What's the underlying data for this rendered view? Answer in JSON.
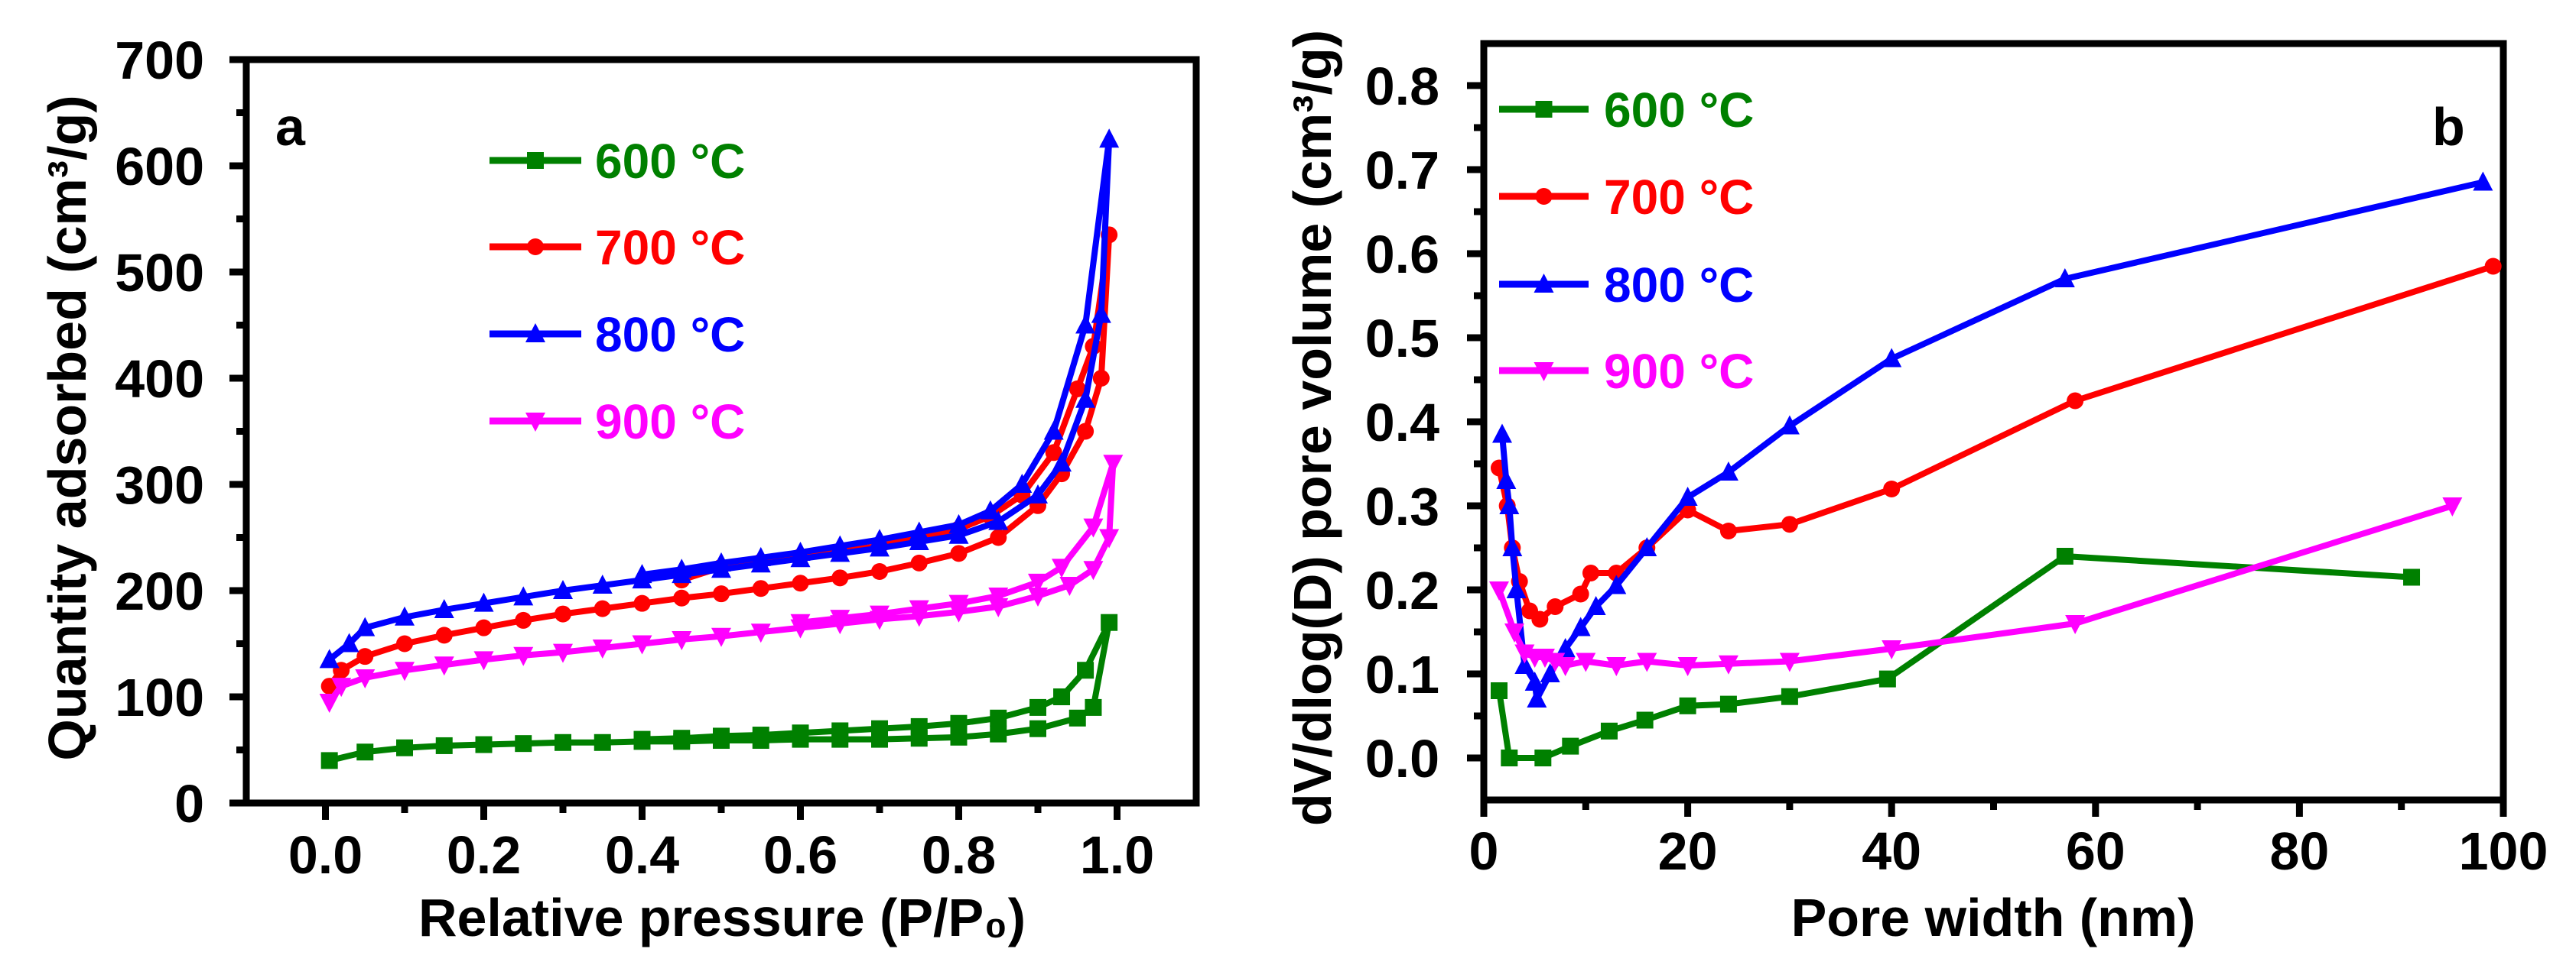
{
  "chart_data": [
    {
      "type": "line",
      "panel_label": "a",
      "xlabel": "Relative pressure (P/P₀)",
      "ylabel": "Quantity adsorbed (cm³/g)",
      "xlim": [
        -0.1,
        1.1
      ],
      "ylim": [
        0,
        700
      ],
      "xticks": [
        0.0,
        0.2,
        0.4,
        0.6,
        0.8,
        1.0
      ],
      "xtick_labels": [
        "0.0",
        "0.2",
        "0.4",
        "0.6",
        "0.8",
        "1.0"
      ],
      "yticks": [
        0,
        100,
        200,
        300,
        400,
        500,
        600,
        700
      ],
      "ytick_labels": [
        "0",
        "100",
        "200",
        "300",
        "400",
        "500",
        "600",
        "700"
      ],
      "legend_position": "top-left",
      "series": [
        {
          "name": "600 °C",
          "color": "#008000",
          "marker": "square",
          "x": [
            0.005,
            0.05,
            0.1,
            0.15,
            0.2,
            0.25,
            0.3,
            0.35,
            0.4,
            0.45,
            0.5,
            0.55,
            0.6,
            0.65,
            0.7,
            0.75,
            0.8,
            0.85,
            0.9,
            0.95,
            0.97,
            0.99,
            0.96,
            0.93,
            0.9,
            0.85,
            0.8,
            0.75,
            0.7,
            0.65,
            0.6,
            0.55,
            0.5,
            0.45,
            0.4
          ],
          "y": [
            40,
            48,
            52,
            54,
            55,
            56,
            57,
            57,
            58,
            58,
            59,
            59,
            60,
            60,
            60,
            61,
            62,
            65,
            70,
            80,
            90,
            170,
            125,
            100,
            90,
            80,
            75,
            72,
            70,
            68,
            66,
            64,
            63,
            61,
            60
          ]
        },
        {
          "name": "700 °C",
          "color": "#ff0000",
          "marker": "circle",
          "x": [
            0.005,
            0.02,
            0.05,
            0.1,
            0.15,
            0.2,
            0.25,
            0.3,
            0.35,
            0.4,
            0.45,
            0.5,
            0.55,
            0.6,
            0.65,
            0.7,
            0.75,
            0.8,
            0.85,
            0.9,
            0.93,
            0.96,
            0.98,
            0.99,
            0.97,
            0.95,
            0.92,
            0.88,
            0.84,
            0.8,
            0.75,
            0.7,
            0.65,
            0.6,
            0.55,
            0.5,
            0.45
          ],
          "y": [
            110,
            125,
            138,
            150,
            158,
            165,
            172,
            178,
            183,
            188,
            193,
            197,
            202,
            207,
            212,
            218,
            226,
            235,
            250,
            280,
            310,
            350,
            400,
            535,
            430,
            390,
            330,
            290,
            270,
            258,
            250,
            242,
            237,
            232,
            227,
            222,
            210
          ]
        },
        {
          "name": "800 °C",
          "color": "#0000ff",
          "marker": "triangle-up",
          "x": [
            0.005,
            0.03,
            0.05,
            0.1,
            0.15,
            0.2,
            0.25,
            0.3,
            0.35,
            0.4,
            0.45,
            0.5,
            0.55,
            0.6,
            0.65,
            0.7,
            0.75,
            0.8,
            0.85,
            0.9,
            0.93,
            0.96,
            0.98,
            0.99,
            0.96,
            0.92,
            0.88,
            0.84,
            0.8,
            0.75,
            0.7,
            0.65,
            0.6,
            0.55,
            0.5,
            0.45,
            0.4
          ],
          "y": [
            135,
            150,
            165,
            175,
            182,
            188,
            194,
            200,
            205,
            210,
            215,
            220,
            225,
            230,
            235,
            240,
            246,
            252,
            265,
            290,
            320,
            380,
            460,
            625,
            450,
            350,
            300,
            275,
            262,
            255,
            248,
            242,
            236,
            231,
            226,
            220,
            215
          ]
        },
        {
          "name": "900 °C",
          "color": "#ff00ff",
          "marker": "triangle-down",
          "x": [
            0.005,
            0.02,
            0.05,
            0.1,
            0.15,
            0.2,
            0.25,
            0.3,
            0.35,
            0.4,
            0.45,
            0.5,
            0.55,
            0.6,
            0.65,
            0.7,
            0.75,
            0.8,
            0.85,
            0.9,
            0.94,
            0.97,
            0.99,
            0.995,
            0.97,
            0.93,
            0.9,
            0.85,
            0.8,
            0.75,
            0.7,
            0.65,
            0.6
          ],
          "y": [
            95,
            110,
            118,
            125,
            130,
            135,
            139,
            142,
            146,
            150,
            154,
            157,
            161,
            165,
            169,
            173,
            176,
            180,
            185,
            195,
            205,
            220,
            250,
            320,
            260,
            222,
            208,
            195,
            188,
            183,
            178,
            174,
            170
          ]
        }
      ]
    },
    {
      "type": "line",
      "panel_label": "b",
      "xlabel": "Pore width (nm)",
      "ylabel": "dV/dlog(D) pore volume (cm³/g)",
      "xlim": [
        0,
        100
      ],
      "ylim": [
        -0.05,
        0.85
      ],
      "xticks": [
        0,
        20,
        40,
        60,
        80,
        100
      ],
      "xtick_labels": [
        "0",
        "20",
        "40",
        "60",
        "80",
        "100"
      ],
      "yticks": [
        0.0,
        0.1,
        0.2,
        0.3,
        0.4,
        0.5,
        0.6,
        0.7,
        0.8
      ],
      "ytick_labels": [
        "0.0",
        "0.1",
        "0.2",
        "0.3",
        "0.4",
        "0.5",
        "0.6",
        "0.7",
        "0.8"
      ],
      "legend_position": "top-left",
      "series": [
        {
          "name": "600 °C",
          "color": "#008000",
          "marker": "square",
          "x": [
            1.5,
            2.5,
            5.8,
            8.5,
            12.3,
            15.8,
            20,
            24,
            30,
            39.6,
            57,
            91
          ],
          "y": [
            0.08,
            0.0,
            0.0,
            0.014,
            0.032,
            0.045,
            0.062,
            0.064,
            0.073,
            0.094,
            0.24,
            0.215
          ]
        },
        {
          "name": "700 °C",
          "color": "#ff0000",
          "marker": "circle",
          "x": [
            1.5,
            2.3,
            2.8,
            3.5,
            4.5,
            5.5,
            7,
            9.5,
            10.5,
            13,
            16,
            20,
            24,
            30,
            40,
            58,
            99
          ],
          "y": [
            0.345,
            0.3,
            0.25,
            0.21,
            0.175,
            0.165,
            0.18,
            0.195,
            0.22,
            0.22,
            0.25,
            0.295,
            0.27,
            0.278,
            0.32,
            0.425,
            0.585
          ]
        },
        {
          "name": "800 °C",
          "color": "#0000ff",
          "marker": "triangle-up",
          "x": [
            1.8,
            2.2,
            2.5,
            2.8,
            3.2,
            4,
            5,
            5.2,
            6.5,
            8,
            9.5,
            11,
            13,
            16,
            20,
            24,
            30,
            40,
            57,
            98
          ],
          "y": [
            0.385,
            0.33,
            0.3,
            0.25,
            0.2,
            0.11,
            0.09,
            0.07,
            0.1,
            0.13,
            0.155,
            0.18,
            0.205,
            0.25,
            0.31,
            0.34,
            0.395,
            0.475,
            0.57,
            0.685
          ]
        },
        {
          "name": "900 °C",
          "color": "#ff00ff",
          "marker": "triangle-down",
          "x": [
            1.5,
            3,
            4,
            5,
            6,
            7,
            8,
            10,
            13,
            16,
            20,
            24,
            30,
            40,
            58,
            95
          ],
          "y": [
            0.2,
            0.15,
            0.125,
            0.12,
            0.12,
            0.115,
            0.11,
            0.115,
            0.11,
            0.115,
            0.11,
            0.112,
            0.115,
            0.13,
            0.16,
            0.3
          ]
        }
      ]
    }
  ]
}
